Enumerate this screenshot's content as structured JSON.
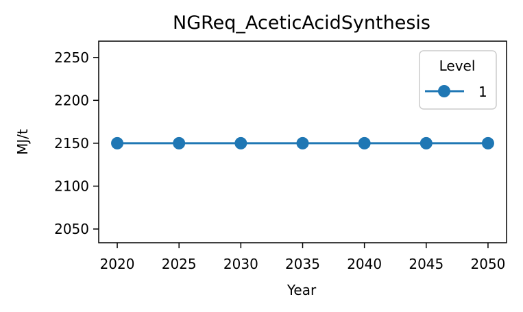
{
  "chart_data": {
    "type": "line",
    "title": "NGReq_AceticAcidSynthesis",
    "xlabel": "Year",
    "ylabel": "MJ/t",
    "x": [
      2020,
      2025,
      2030,
      2035,
      2040,
      2045,
      2050
    ],
    "xlim": [
      2018.5,
      2051.5
    ],
    "ylim": [
      2034,
      2269
    ],
    "x_ticks": [
      2020,
      2025,
      2030,
      2035,
      2040,
      2045,
      2050
    ],
    "y_ticks": [
      2050,
      2100,
      2150,
      2200,
      2250
    ],
    "grid": false,
    "legend": {
      "title": "Level",
      "placement": "top-right"
    },
    "series": [
      {
        "name": "1",
        "color": "#1f77b4",
        "marker": "circle",
        "values": [
          2150,
          2150,
          2150,
          2150,
          2150,
          2150,
          2150
        ]
      }
    ]
  }
}
